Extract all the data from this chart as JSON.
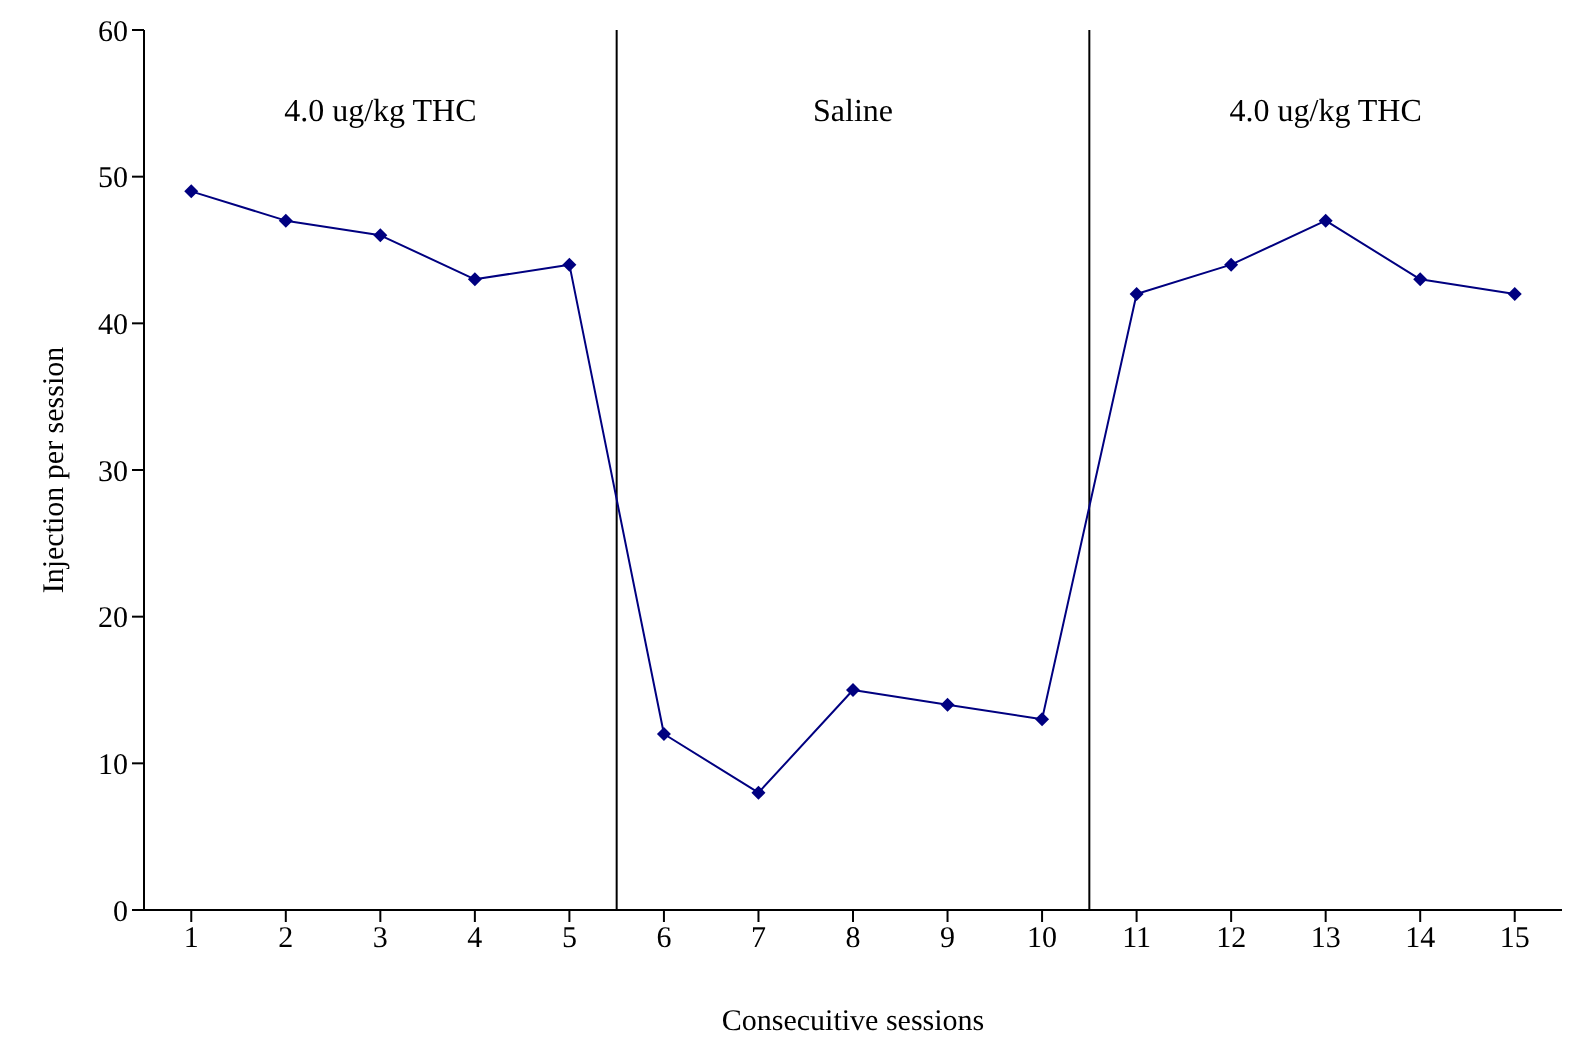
{
  "chart_data": {
    "type": "line",
    "xlabel": "Consecuitive sessions",
    "ylabel": "Injection per session",
    "x": [
      1,
      2,
      3,
      4,
      5,
      6,
      7,
      8,
      9,
      10,
      11,
      12,
      13,
      14,
      15
    ],
    "series": [
      {
        "color": "#000080",
        "values": [
          49,
          47,
          46,
          43,
          44,
          12,
          8,
          15,
          14,
          13,
          42,
          44,
          47,
          43,
          42
        ]
      }
    ],
    "xlim": [
      0.5,
      15.5
    ],
    "xticks": [
      1,
      2,
      3,
      4,
      5,
      6,
      7,
      8,
      9,
      10,
      11,
      12,
      13,
      14,
      15
    ],
    "ylim": [
      0,
      60
    ],
    "yticks": [
      0,
      10,
      20,
      30,
      40,
      50,
      60
    ],
    "ref_lines": [
      {
        "axis": "x",
        "value": 5.5,
        "color": "#000000"
      },
      {
        "axis": "x",
        "value": 10.5,
        "color": "#000000"
      }
    ],
    "annotations": [
      "4.0 ug/kg THC",
      "Saline",
      "4.0 ug/kg THC"
    ],
    "grid": false,
    "legend": false,
    "marker": "diamond",
    "line_style": "solid"
  }
}
